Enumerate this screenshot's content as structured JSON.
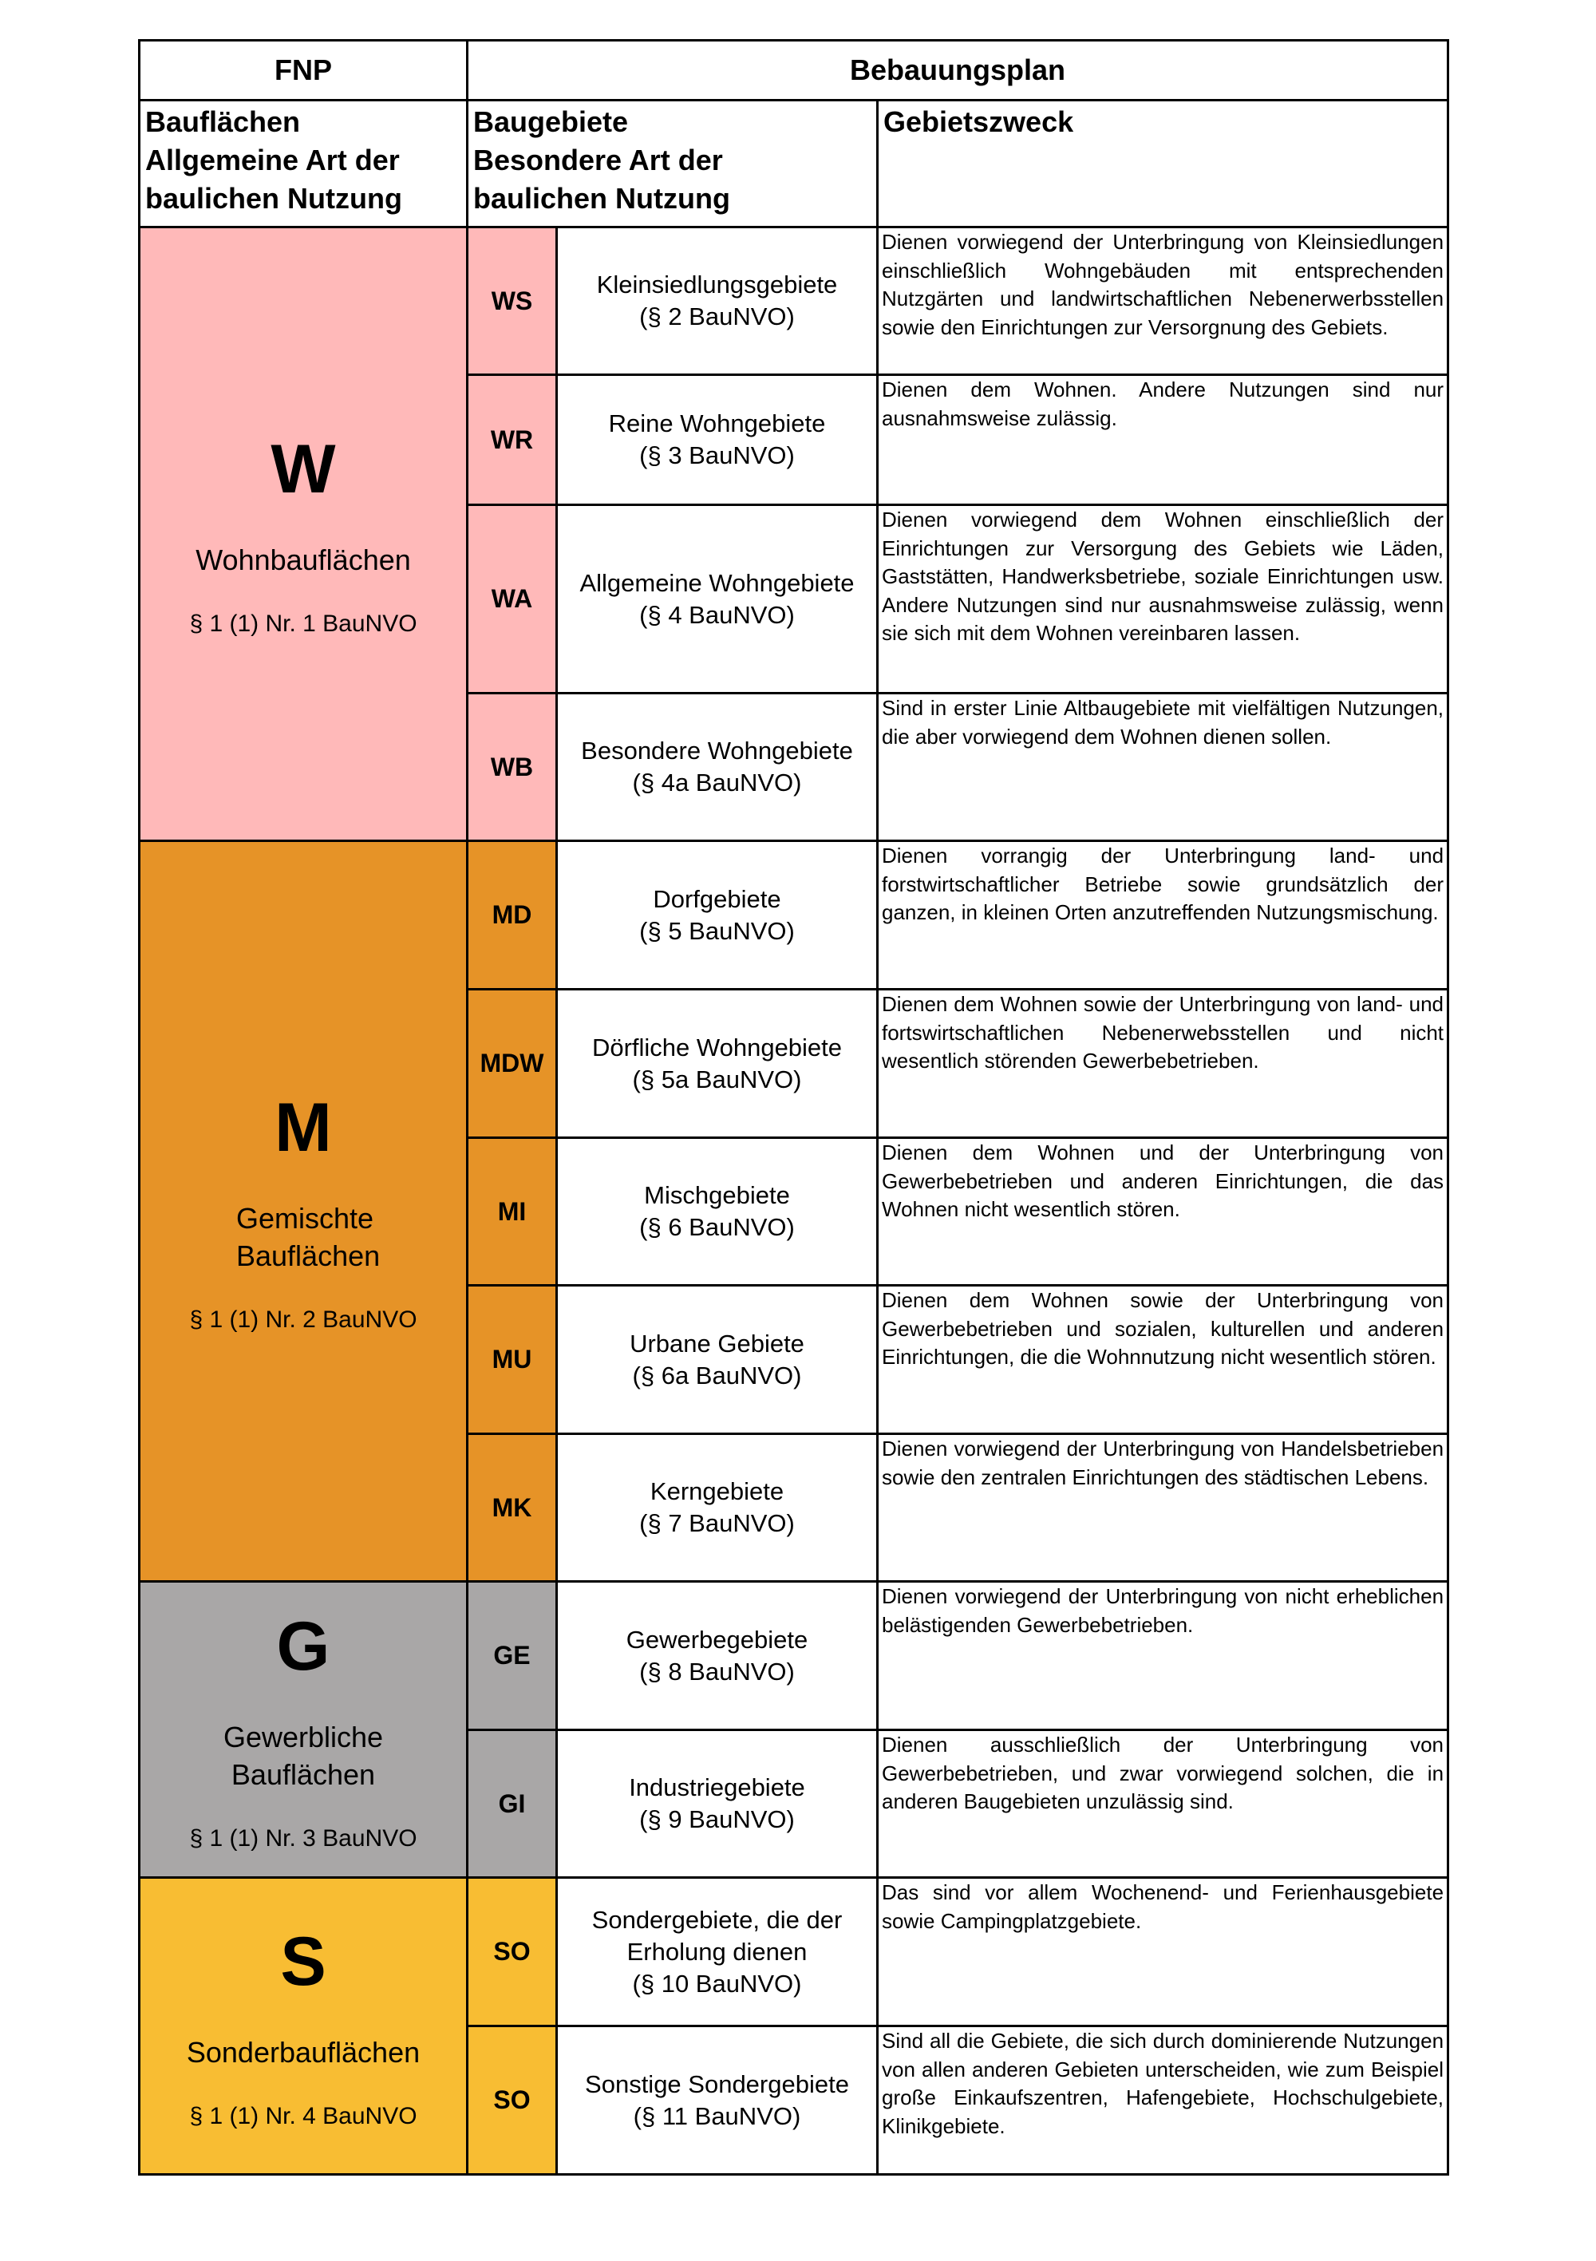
{
  "header": {
    "fnp": "FNP",
    "bebauungsplan": "Bebauungsplan"
  },
  "subheader": {
    "col1": [
      "Bauflächen",
      "Allgemeine Art der",
      "baulichen Nutzung"
    ],
    "col2": [
      "Baugebiete",
      "Besondere Art der",
      "baulichen Nutzung"
    ],
    "col3": "Gebietszweck"
  },
  "groups": [
    {
      "letter": "W",
      "name": "Wohnbauflächen",
      "paragraph": "§ 1 (1) Nr. 1 BauNVO",
      "color": "#ffb9b9",
      "span": 4
    },
    {
      "letter": "M",
      "name": "Gemischte Bauflächen",
      "paragraph": "§ 1 (1) Nr. 2 BauNVO",
      "color": "#e69327",
      "span": 5
    },
    {
      "letter": "G",
      "name": "Gewerbliche Bauflächen",
      "paragraph": "§ 1 (1) Nr. 3 BauNVO",
      "color": "#a9a7a7",
      "span": 2
    },
    {
      "letter": "S",
      "name": "Sonderbauflächen",
      "paragraph": "§ 1 (1) Nr. 4 BauNVO",
      "color": "#f8bd33",
      "span": 2
    }
  ],
  "rows": [
    {
      "code": "WS",
      "type": "Kleinsiedlungsgebiete",
      "law": "(§ 2 BauNVO)",
      "purpose": "Dienen vorwiegend der Unterbringung von Kleinsiedlungen einschließlich Wohngebäuden mit entsprechenden Nutzgärten und landwirtschaftlichen Nebenerwerbsstellen sowie den Einrichtungen zur Versorgnung des Gebiets."
    },
    {
      "code": "WR",
      "type": "Reine Wohngebiete",
      "law": "(§ 3 BauNVO)",
      "purpose": "Dienen dem Wohnen. Andere Nutzungen sind nur ausnahmsweise zulässig."
    },
    {
      "code": "WA",
      "type": "Allgemeine Wohngebiete",
      "law": "(§ 4 BauNVO)",
      "purpose": "Dienen vorwiegend dem Wohnen einschließlich der Einrichtungen zur Versorgung des Gebiets wie Läden, Gaststätten, Handwerksbetriebe, soziale Einrichtungen usw. Andere Nutzungen sind nur ausnahmsweise zulässig, wenn sie sich mit dem Wohnen vereinbaren lassen."
    },
    {
      "code": "WB",
      "type": "Besondere Wohngebiete",
      "law": "(§ 4a BauNVO)",
      "purpose": "Sind in erster Linie Altbaugebiete mit vielfältigen Nutzungen, die aber vorwiegend dem Wohnen dienen sollen."
    },
    {
      "code": "MD",
      "type": "Dorfgebiete",
      "law": "(§ 5 BauNVO)",
      "purpose": "Dienen vorrangig der Unterbringung land- und forstwirtschaftlicher Betriebe sowie grundsätzlich der ganzen, in kleinen Orten anzutreffenden Nutzungsmischung."
    },
    {
      "code": "MDW",
      "type": "Dörfliche Wohngebiete",
      "law": "(§ 5a BauNVO)",
      "purpose": "Dienen dem Wohnen sowie der Unterbringung von land- und fortswirtschaftlichen Nebenerwebsstellen und nicht wesentlich störenden Gewerbebetrieben."
    },
    {
      "code": "MI",
      "type": "Mischgebiete",
      "law": "(§ 6 BauNVO)",
      "purpose": "Dienen dem Wohnen und der Unterbringung von Gewerbebetrieben und anderen Einrichtungen, die das Wohnen nicht wesentlich stören."
    },
    {
      "code": "MU",
      "type": "Urbane Gebiete",
      "law": "(§ 6a BauNVO)",
      "purpose": "Dienen dem Wohnen sowie der Unterbringung von Gewerbebetrieben und sozialen, kulturellen und anderen Einrichtungen, die die Wohnnutzung nicht wesentlich stören."
    },
    {
      "code": "MK",
      "type": "Kerngebiete",
      "law": "(§ 7 BauNVO)",
      "purpose": "Dienen vorwiegend der Unterbringung von Handelsbetrieben sowie den zentralen Einrichtungen des städtischen Lebens."
    },
    {
      "code": "GE",
      "type": "Gewerbegebiete",
      "law": "(§ 8 BauNVO)",
      "purpose": "Dienen vorwiegend der Unterbringung von nicht erheblichen belästigenden Gewerbebetrieben."
    },
    {
      "code": "GI",
      "type": "Industriegebiete",
      "law": "(§ 9 BauNVO)",
      "purpose": "Dienen ausschließlich der Unterbringung von Gewerbebetrieben, und zwar vorwiegend solchen, die in anderen Baugebieten unzulässig sind."
    },
    {
      "code": "SO",
      "type": "Sondergebiete, die der Erholung dienen",
      "law": "(§ 10 BauNVO)",
      "purpose": "Das sind vor allem Wochenend- und Ferienhausgebiete sowie Campingplatzgebiete."
    },
    {
      "code": "SO",
      "type": "Sonstige Sondergebiete",
      "law": "(§ 11 BauNVO)",
      "purpose": "Sind all die Gebiete, die sich durch dominierende Nutzungen von allen anderen Gebieten unterscheiden, wie zum Beispiel große Einkaufszentren, Hafengebiete, Hochschulgebiete, Klinikgebiete."
    }
  ]
}
